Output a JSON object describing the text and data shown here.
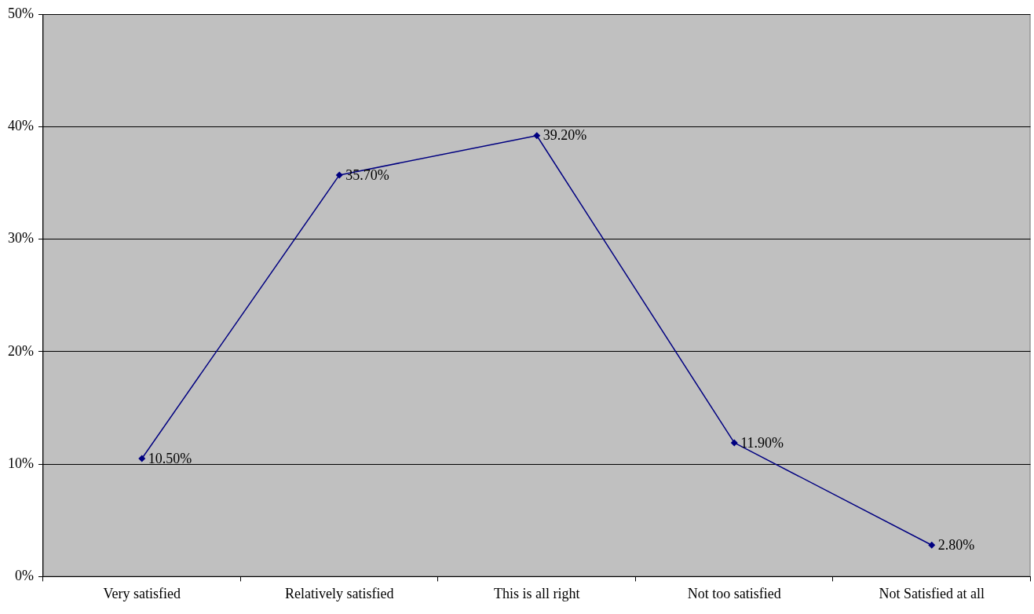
{
  "chart_data": {
    "type": "line",
    "categories": [
      "Very satisfied",
      "Relatively satisfied",
      "This is all right",
      "Not too satisfied",
      "Not Satisfied at all"
    ],
    "series": [
      {
        "color": "#000080",
        "values": [
          10.5,
          35.7,
          39.2,
          11.9,
          2.8
        ],
        "value_labels": [
          "10.50%",
          "35.70%",
          "39.20%",
          "11.90%",
          "2.80%"
        ]
      }
    ],
    "ylim": [
      0,
      50
    ],
    "yticks": [
      {
        "value": 0,
        "label": "0%"
      },
      {
        "value": 10,
        "label": "10%"
      },
      {
        "value": 20,
        "label": "20%"
      },
      {
        "value": 30,
        "label": "30%"
      },
      {
        "value": 40,
        "label": "40%"
      },
      {
        "value": 50,
        "label": "50%"
      }
    ],
    "grid": "y",
    "legend": false,
    "marker": "diamond",
    "line_style": "solid"
  }
}
